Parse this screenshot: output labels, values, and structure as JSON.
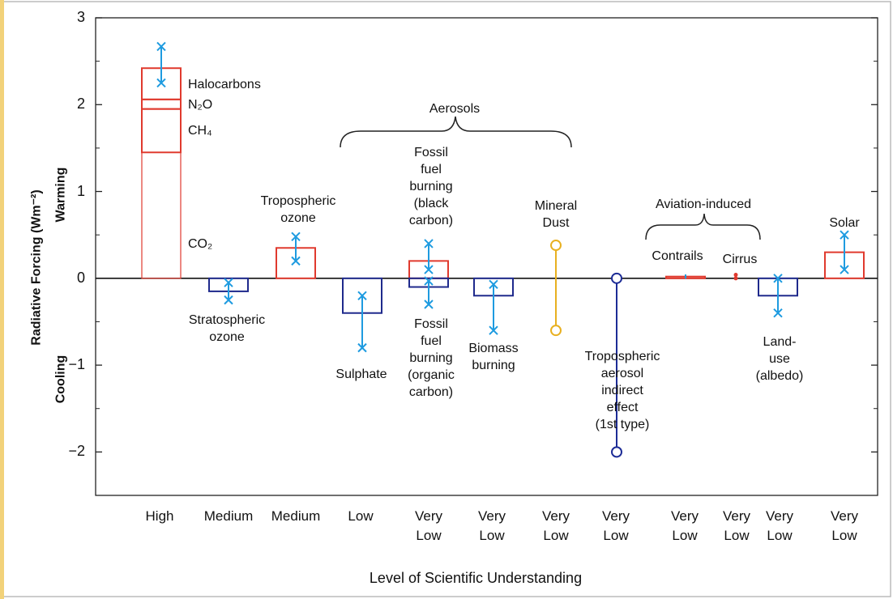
{
  "chart_data": {
    "type": "forcing",
    "y_label": "Radiative Forcing (Wm⁻²)",
    "warming_label": "Warming",
    "cooling_label": "Cooling",
    "x_label": "Level of Scientific Understanding",
    "ylim": [
      -2.5,
      3
    ],
    "yticks": [
      {
        "value": -2,
        "label": "−2"
      },
      {
        "value": -1,
        "label": "−1"
      },
      0,
      1,
      2,
      3
    ],
    "range_color": "#1e9be0",
    "categories": [
      "High",
      "Medium",
      "Medium",
      "Low",
      "Very Low",
      "Very Low",
      "Very Low",
      "Very Low",
      "Very Low",
      "Very Low",
      "Very Low",
      "Very Low"
    ],
    "annotations": [
      {
        "text": "Aerosols"
      },
      {
        "text": "Aviation-induced"
      }
    ],
    "items": [
      {
        "segments": [
          {
            "name": "CO₂",
            "value": 1.45
          },
          {
            "name": "CH₄",
            "value": 0.5
          },
          {
            "name": "N₂O",
            "value": 0.11
          },
          {
            "name": "Halocarbons",
            "value": 0.36
          }
        ],
        "range": [
          2.67,
          2.25
        ],
        "color": "#e03a2e"
      },
      {
        "label": [
          "Stratospheric",
          "ozone"
        ],
        "value": -0.15,
        "range": [
          -0.05,
          -0.25
        ],
        "color": "#1f2a8c"
      },
      {
        "label": [
          "Tropospheric",
          "ozone"
        ],
        "value": 0.35,
        "range": [
          0.48,
          0.2
        ],
        "color": "#e03a2e"
      },
      {
        "label": [
          "Sulphate"
        ],
        "value": -0.4,
        "range": [
          -0.2,
          -0.8
        ],
        "color": "#1f2a8c"
      },
      {
        "label": [
          "Fossil",
          "fuel",
          "burning",
          "(black",
          "carbon)"
        ],
        "value": 0.2,
        "range": [
          0.4,
          0.1
        ],
        "color": "#e03a2e"
      },
      {
        "label": [
          "Fossil",
          "fuel",
          "burning",
          "(organic",
          "carbon)"
        ],
        "value": -0.1,
        "range": [
          -0.03,
          -0.3
        ],
        "color": "#1f2a8c"
      },
      {
        "label": [
          "Biomass",
          "burning"
        ],
        "value": -0.2,
        "range": [
          -0.07,
          -0.6
        ],
        "color": "#1f2a8c"
      },
      {
        "label": [
          "Mineral",
          "Dust"
        ],
        "range": [
          0.38,
          -0.6
        ],
        "color": "#e8b020",
        "marker": "circle"
      },
      {
        "label": [
          "Tropospheric",
          "aerosol",
          "indirect",
          "effect",
          "(1st type)"
        ],
        "range": [
          0,
          -2
        ],
        "color": "#1d2c96",
        "marker": "circle"
      },
      {
        "label": [
          "Contrails"
        ],
        "value": 0.02,
        "range": [
          0.04,
          0
        ],
        "color": "#e03a2e",
        "marker": "none"
      },
      {
        "label": [
          "Cirrus"
        ],
        "range": [
          0.04,
          0
        ],
        "color": "#e03a2e",
        "marker": "dot"
      },
      {
        "label": [
          "Land-",
          "use",
          "(albedo)"
        ],
        "value": -0.2,
        "range": [
          0,
          -0.4
        ],
        "color": "#1f2a8c"
      },
      {
        "label": [
          "Solar"
        ],
        "value": 0.3,
        "range": [
          0.5,
          0.1
        ],
        "color": "#e03a2e"
      }
    ]
  }
}
